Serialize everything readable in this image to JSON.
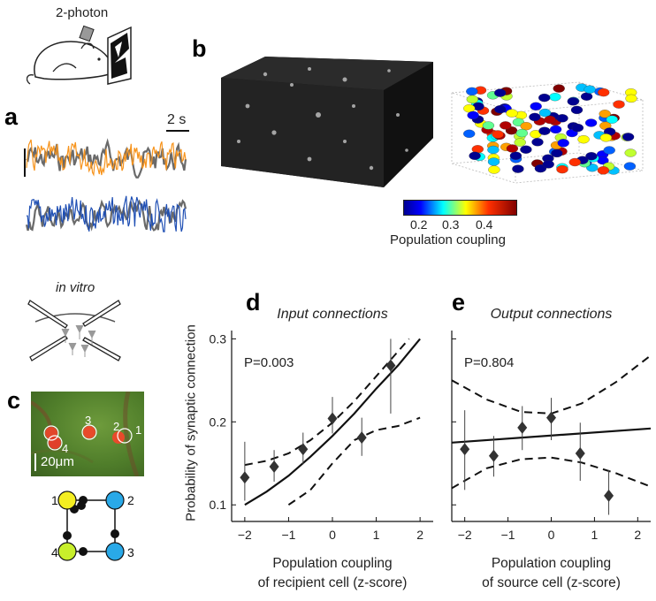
{
  "panels": {
    "a": "a",
    "b": "b",
    "c": "c",
    "d": "d",
    "e": "e"
  },
  "setup": {
    "two_photon": "2-photon",
    "in_vitro": "in vitro"
  },
  "traces": {
    "scalebar": "2 s",
    "colors": {
      "orange": "#f7941d",
      "blue": "#1f4fb4",
      "gray": "#6a6a6a"
    }
  },
  "colorbar": {
    "ticks": [
      "0.2",
      "0.3",
      "0.4"
    ],
    "label": "Population coupling"
  },
  "microscope": {
    "scalebar": "20μm",
    "cell_labels": [
      "3",
      "2",
      "1",
      "4"
    ]
  },
  "network": {
    "nodes": [
      "1",
      "2",
      "3",
      "4"
    ],
    "colors": {
      "yellow": "#f4ee21",
      "green_yellow": "#c8ef2b",
      "cyan": "#29a9e8"
    }
  },
  "shared_ylabel": "Probability of synaptic connection",
  "chart_data": [
    {
      "type": "scatter",
      "title": "Input connections",
      "annotation": "P=0.003",
      "xlabel": "Population coupling of recipient cell (z-score)",
      "xlabel_lines": [
        "Population coupling",
        "of recipient cell (z-score)"
      ],
      "xticks": [
        "−2",
        "−1",
        "0",
        "1",
        "2"
      ],
      "yticks": [
        "0.1",
        "0.2",
        "0.3"
      ],
      "xlim": [
        -2.3,
        2.3
      ],
      "ylim": [
        0.08,
        0.31
      ],
      "x": [
        -2.0,
        -1.33,
        -0.67,
        0.0,
        0.67,
        1.33
      ],
      "y": [
        0.133,
        0.146,
        0.167,
        0.204,
        0.181,
        0.268
      ],
      "err_low": [
        0.105,
        0.128,
        0.149,
        0.186,
        0.159,
        0.21
      ],
      "err_high": [
        0.176,
        0.166,
        0.187,
        0.23,
        0.205,
        0.3
      ],
      "fit": [
        [
          -2.0,
          0.1
        ],
        [
          -1.5,
          0.116
        ],
        [
          -1.0,
          0.135
        ],
        [
          -0.5,
          0.158
        ],
        [
          0.0,
          0.183
        ],
        [
          0.5,
          0.21
        ],
        [
          1.0,
          0.24
        ],
        [
          1.5,
          0.268
        ],
        [
          2.0,
          0.3
        ]
      ],
      "ci_upper": [
        [
          -2.0,
          0.148
        ],
        [
          -1.5,
          0.153
        ],
        [
          -1.0,
          0.162
        ],
        [
          -0.5,
          0.178
        ],
        [
          0.0,
          0.199
        ],
        [
          0.5,
          0.225
        ],
        [
          1.0,
          0.255
        ],
        [
          1.5,
          0.285
        ],
        [
          1.75,
          0.3
        ]
      ],
      "ci_lower": [
        [
          -1.0,
          0.1
        ],
        [
          -0.5,
          0.118
        ],
        [
          0.0,
          0.15
        ],
        [
          0.5,
          0.178
        ],
        [
          1.0,
          0.19
        ],
        [
          1.5,
          0.195
        ],
        [
          2.0,
          0.205
        ]
      ]
    },
    {
      "type": "scatter",
      "title": "Output connections",
      "annotation": "P=0.804",
      "xlabel": "Population coupling of source cell (z-score)",
      "xlabel_lines": [
        "Population coupling",
        "of source cell (z-score)"
      ],
      "xticks": [
        "−2",
        "−1",
        "0",
        "1",
        "2"
      ],
      "yticks": [],
      "xlim": [
        -2.3,
        2.3
      ],
      "ylim": [
        0.08,
        0.31
      ],
      "x": [
        -2.0,
        -1.33,
        -0.67,
        0.0,
        0.67,
        1.33
      ],
      "y": [
        0.167,
        0.159,
        0.193,
        0.205,
        0.162,
        0.111
      ],
      "err_low": [
        0.118,
        0.134,
        0.166,
        0.178,
        0.129,
        0.088
      ],
      "err_high": [
        0.214,
        0.183,
        0.219,
        0.229,
        0.199,
        0.142
      ],
      "fit": [
        [
          -2.3,
          0.175
        ],
        [
          2.3,
          0.192
        ]
      ],
      "ci_upper": [
        [
          -2.3,
          0.25
        ],
        [
          -1.5,
          0.227
        ],
        [
          -0.7,
          0.212
        ],
        [
          0.0,
          0.21
        ],
        [
          0.7,
          0.222
        ],
        [
          1.5,
          0.248
        ],
        [
          2.3,
          0.28
        ]
      ],
      "ci_lower": [
        [
          -2.3,
          0.12
        ],
        [
          -1.5,
          0.144
        ],
        [
          -0.7,
          0.155
        ],
        [
          0.0,
          0.157
        ],
        [
          0.7,
          0.151
        ],
        [
          1.5,
          0.138
        ],
        [
          2.3,
          0.122
        ]
      ]
    }
  ]
}
